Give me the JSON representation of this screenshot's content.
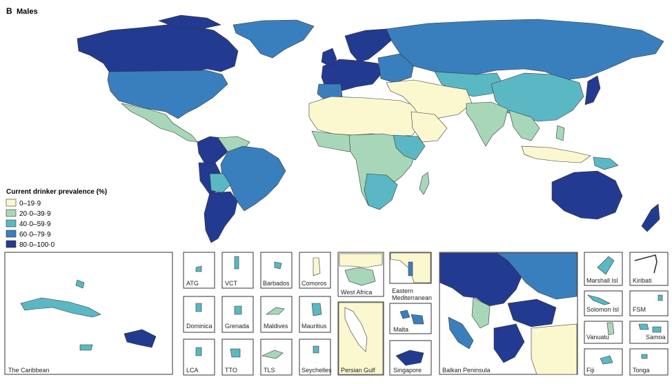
{
  "figure": {
    "panel_letter": "B",
    "title": "Males"
  },
  "colors": {
    "c0": "#fbf7cf",
    "c1": "#a7d7b8",
    "c2": "#5ab8c4",
    "c3": "#3a7fbd",
    "c4": "#233a91"
  },
  "legend": {
    "title": "Current drinker prevalence (%)",
    "items": [
      {
        "label": "0–19·9",
        "color_key": "c0"
      },
      {
        "label": "20·0–39·9",
        "color_key": "c1"
      },
      {
        "label": "40·0–59·9",
        "color_key": "c2"
      },
      {
        "label": "60·0–79·9",
        "color_key": "c3"
      },
      {
        "label": "80·0–100·0",
        "color_key": "c4"
      }
    ]
  },
  "insets": {
    "caribbean": "The Caribbean",
    "atg": "ATG",
    "vct": "VCT",
    "barbados": "Barbados",
    "comoros": "Comoros",
    "dominica": "Dominica",
    "grenada": "Grenada",
    "maldives": "Maldives",
    "mauritius": "Mauritius",
    "lca": "LCA",
    "tto": "TTO",
    "tls": "TLS",
    "seychelles": "Seychelles",
    "west_africa": "West Africa",
    "eastern_med_line1": "Eastern",
    "eastern_med_line2": "Mediterranean",
    "persian_gulf": "Persian Gulf",
    "malta": "Malta",
    "singapore": "Singapore",
    "balkan": "Balkan Peninsula",
    "marshall": "Marshall Isl",
    "kiribati": "Kiribati",
    "solomon": "Solomon Isl",
    "fsm": "FSM",
    "vanuatu": "Vanuatu",
    "samoa": "Samoa",
    "fiji": "Fiji",
    "tonga": "Tonga"
  }
}
